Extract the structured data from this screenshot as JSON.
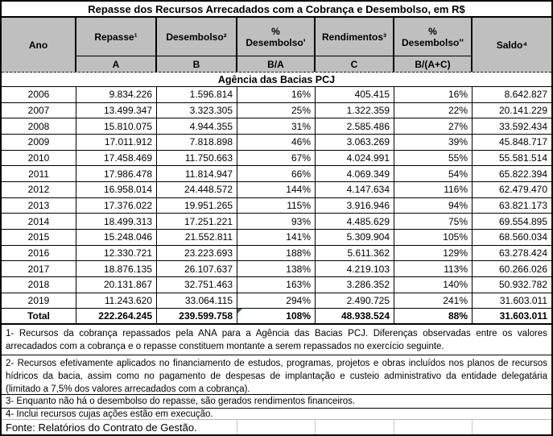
{
  "title": "Repasse dos Recursos Arrecadados com a Cobrança e Desembolso, em R$",
  "table": {
    "section": "Agência das Bacias PCJ",
    "columns": [
      {
        "label": "Ano",
        "sub": ""
      },
      {
        "label": "Repasse¹",
        "sub": "A"
      },
      {
        "label": "Desembolso²",
        "sub": "B"
      },
      {
        "label": "%\nDesembolso'",
        "sub": "B/A"
      },
      {
        "label": "Rendimentos³",
        "sub": "C"
      },
      {
        "label": "%\nDesembolso''",
        "sub": "B/(A+C)"
      },
      {
        "label": "Saldo⁴",
        "sub": ""
      }
    ],
    "rows": [
      [
        "2006",
        "9.834.226",
        "1.596.814",
        "16%",
        "405.415",
        "16%",
        "8.642.827"
      ],
      [
        "2007",
        "13.499.347",
        "3.323.305",
        "25%",
        "1.322.359",
        "22%",
        "20.141.229"
      ],
      [
        "2008",
        "15.810.075",
        "4.944.355",
        "31%",
        "2.585.486",
        "27%",
        "33.592.434"
      ],
      [
        "2009",
        "17.011.912",
        "7.818.898",
        "46%",
        "3.063.269",
        "39%",
        "45.848.717"
      ],
      [
        "2010",
        "17.458.469",
        "11.750.663",
        "67%",
        "4.024.991",
        "55%",
        "55.581.514"
      ],
      [
        "2011",
        "17.986.478",
        "11.814.947",
        "66%",
        "4.069.349",
        "54%",
        "65.822.394"
      ],
      [
        "2012",
        "16.958.014",
        "24.448.572",
        "144%",
        "4.147.634",
        "116%",
        "62.479.470"
      ],
      [
        "2013",
        "17.376.022",
        "19.951.265",
        "115%",
        "3.916.946",
        "94%",
        "63.821.173"
      ],
      [
        "2014",
        "18.499.313",
        "17.251.221",
        "93%",
        "4.485.629",
        "75%",
        "69.554.895"
      ],
      [
        "2015",
        "15.248.046",
        "21.552.811",
        "141%",
        "5.309.904",
        "105%",
        "68.560.034"
      ],
      [
        "2016",
        "12.330.721",
        "23.223.693",
        "188%",
        "5.611.362",
        "129%",
        "63.278.424"
      ],
      [
        "2017",
        "18.876.135",
        "26.107.637",
        "138%",
        "4.219.103",
        "113%",
        "60.266.026"
      ],
      [
        "2018",
        "20.131.867",
        "32.751.463",
        "163%",
        "3.286.352",
        "140%",
        "50.932.782"
      ],
      [
        "2019",
        "11.243.620",
        "33.064.115",
        "294%",
        "2.490.725",
        "241%",
        "31.603.011"
      ],
      [
        "Total",
        "222.264.245",
        "239.599.758",
        "108%",
        "48.938.524",
        "88%",
        "31.603.011"
      ]
    ]
  },
  "notes": [
    "1- Recursos da cobrança repassados pela ANA para a Agência das Bacias PCJ. Diferenças observadas entre os valores arrecadados com a cobrança e o repasse constituem montante a serem repassados no exercício seguinte.",
    "2- Recursos efetivamente aplicados no financiamento de estudos, programas, projetos e obras incluídos nos planos de recursos hídricos da bacia, assim como no pagamento de despesas de implantação e custeio administrativo da entidade delegatária  (limitado a 7,5% dos valores arrecadados com a cobrança).",
    "3- Enquanto não há o desembolso do repasse, são gerados rendimentos financeiros.",
    "4- Inclui recursos cujas ações estão em execução."
  ],
  "fonte": "Fonte: Relatórios do Contrato de Gestão.",
  "colors": {
    "header_bg": "#bfbfbf",
    "border": "#000000",
    "error_triangle": "#1e7e34",
    "gridline_gray": "#c9c9c9"
  }
}
